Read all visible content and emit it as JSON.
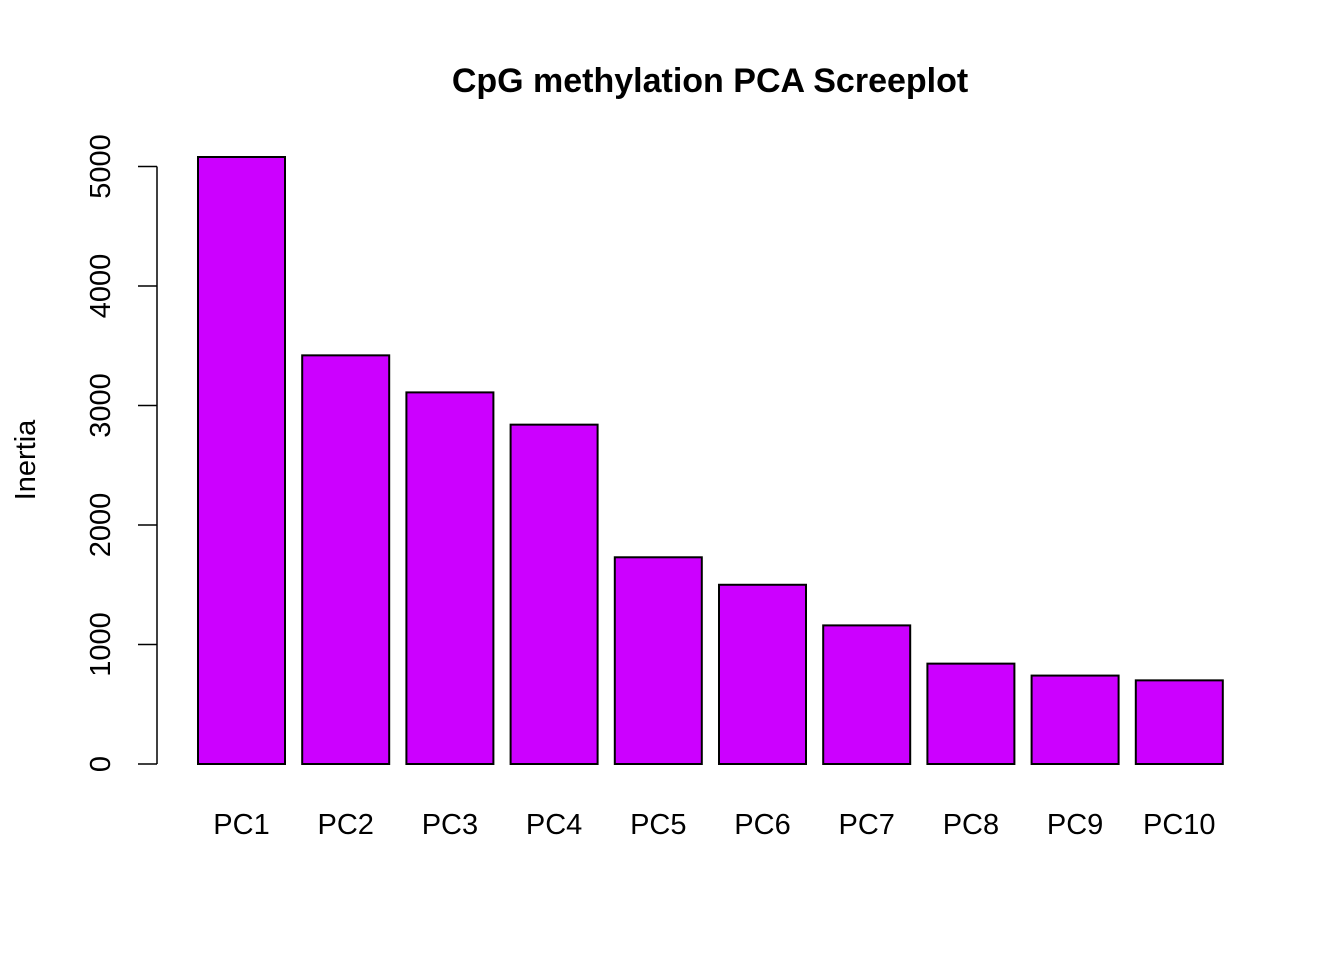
{
  "chart_data": {
    "type": "bar",
    "title": "CpG methylation PCA Screeplot",
    "xlabel": "",
    "ylabel": "Inertia",
    "categories": [
      "PC1",
      "PC2",
      "PC3",
      "PC4",
      "PC5",
      "PC6",
      "PC7",
      "PC8",
      "PC9",
      "PC10"
    ],
    "values": [
      5080,
      3420,
      3110,
      2840,
      1730,
      1500,
      1160,
      840,
      740,
      700
    ],
    "ylim": [
      0,
      5080
    ],
    "yticks": [
      0,
      1000,
      2000,
      3000,
      4000,
      5000
    ],
    "bar_color": "#CC00FF",
    "grid": false,
    "legend": "none"
  }
}
